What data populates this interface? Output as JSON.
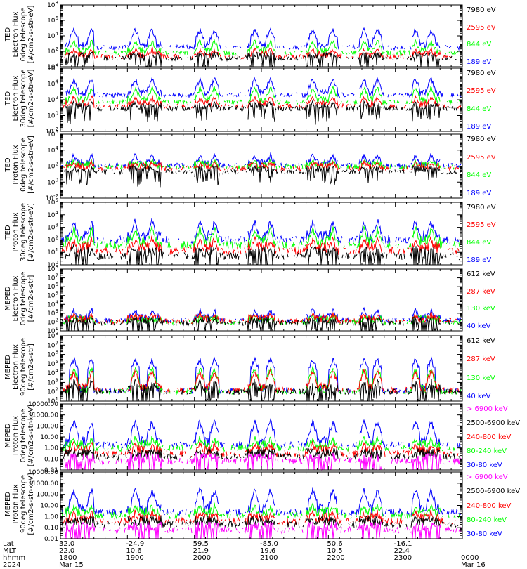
{
  "colors": {
    "blue": "#0000ff",
    "red": "#ff0000",
    "green": "#00ff00",
    "black": "#000000",
    "magenta": "#ff00ff"
  },
  "chart_data": [
    {
      "type": "line",
      "ylabel": [
        "TED",
        "Electron Flux",
        "0deg telescope",
        "[#/cm2-s-str-eV]"
      ],
      "ylim": [
        1.0,
        100000000.0
      ],
      "ticks": [
        "10^0",
        "10^2",
        "10^4",
        "10^6",
        "10^8"
      ],
      "legend": [
        "7980 eV",
        "2595 eV",
        "844 eV",
        "189 eV"
      ],
      "series": [
        {
          "name": "189 eV",
          "color": "blue",
          "level": 2.5,
          "burst": 4.8
        },
        {
          "name": "844 eV",
          "color": "green",
          "level": 1.8,
          "burst": 3.3
        },
        {
          "name": "2595 eV",
          "color": "red",
          "level": 1.3,
          "burst": 2.3
        },
        {
          "name": "7980 eV",
          "color": "black",
          "level": 1.1,
          "burst": 1.7
        }
      ]
    },
    {
      "type": "line",
      "ylabel": [
        "TED",
        "Electron Flux",
        "30deg telescope",
        "[#/cm2-s-str-eV]"
      ],
      "ylim": [
        0.01,
        1000000.0
      ],
      "ticks": [
        "10^-2",
        "10^0",
        "10^2",
        "10^4",
        "10^6"
      ],
      "legend": [
        "7980 eV",
        "2595 eV",
        "844 eV",
        "189 eV"
      ],
      "series": [
        {
          "name": "189 eV",
          "color": "blue",
          "level": 2.6,
          "burst": 4.6
        },
        {
          "name": "844 eV",
          "color": "green",
          "level": 1.7,
          "burst": 3.5
        },
        {
          "name": "2595 eV",
          "color": "red",
          "level": 1.2,
          "burst": 2.4
        },
        {
          "name": "7980 eV",
          "color": "black",
          "level": 0.9,
          "burst": 1.6
        }
      ]
    },
    {
      "type": "line",
      "ylabel": [
        "TED",
        "Proton Flux",
        "0deg telescope",
        "[#/cm2-s-str-eV]"
      ],
      "ylim": [
        0.01,
        1000000.0
      ],
      "ticks": [
        "10^-2",
        "10^0",
        "10^2",
        "10^4",
        "10^6"
      ],
      "legend": [
        "7980 eV",
        "2595 eV",
        "844 eV",
        "189 eV"
      ],
      "series": [
        {
          "name": "189 eV",
          "color": "blue",
          "level": 2.1,
          "burst": 3.4
        },
        {
          "name": "844 eV",
          "color": "green",
          "level": 1.9,
          "burst": 2.7
        },
        {
          "name": "2595 eV",
          "color": "red",
          "level": 1.7,
          "burst": 2.5
        },
        {
          "name": "7980 eV",
          "color": "black",
          "level": 1.3,
          "burst": 1.9
        }
      ]
    },
    {
      "type": "line",
      "ylabel": [
        "TED",
        "Proton Flux",
        "30deg telescope",
        "[#/cm2-s-str-eV]"
      ],
      "ylim": [
        1.0,
        100000.0
      ],
      "ticks": [
        "10^0",
        "10^1",
        "10^2",
        "10^3",
        "10^4",
        "10^5"
      ],
      "legend": [
        "7980 eV",
        "2595 eV",
        "844 eV",
        "189 eV"
      ],
      "series": [
        {
          "name": "189 eV",
          "color": "blue",
          "level": 2.0,
          "burst": 3.5
        },
        {
          "name": "844 eV",
          "color": "green",
          "level": 1.6,
          "burst": 2.9
        },
        {
          "name": "2595 eV",
          "color": "red",
          "level": 1.1,
          "burst": 2.1
        },
        {
          "name": "7980 eV",
          "color": "black",
          "level": 0.7,
          "burst": 1.4
        }
      ]
    },
    {
      "type": "line",
      "ylabel": [
        "MEPED",
        "Electron Flux",
        "0deg telescope",
        "[#/cm2-s-str]"
      ],
      "ylim": [
        10.0,
        100000000.0
      ],
      "ticks": [
        "10^1",
        "10^2",
        "10^3",
        "10^4",
        "10^5",
        "10^6",
        "10^7",
        "10^8"
      ],
      "legend": [
        "612 keV",
        "287 keV",
        "130 keV",
        "40 keV"
      ],
      "series": [
        {
          "name": "40 keV",
          "color": "blue",
          "level": 2.2,
          "burst": 3.4
        },
        {
          "name": "130 keV",
          "color": "green",
          "level": 2.0,
          "burst": 2.6
        },
        {
          "name": "287 keV",
          "color": "red",
          "level": 2.1,
          "burst": 2.9
        },
        {
          "name": "612 keV",
          "color": "black",
          "level": 1.9,
          "burst": 2.3
        }
      ]
    },
    {
      "type": "line",
      "ylabel": [
        "MEPED",
        "Electron Flux",
        "90deg telescope",
        "[#/cm2-s-str]"
      ],
      "ylim": [
        10.0,
        100000000.0
      ],
      "ticks": [
        "10^1",
        "10^2",
        "10^3",
        "10^4",
        "10^5",
        "10^6",
        "10^7",
        "10^8"
      ],
      "legend": [
        "612 keV",
        "287 keV",
        "130 keV",
        "40 keV"
      ],
      "series": [
        {
          "name": "40 keV",
          "color": "blue",
          "level": 2.1,
          "burst": 5.5
        },
        {
          "name": "130 keV",
          "color": "green",
          "level": 2.0,
          "burst": 4.5
        },
        {
          "name": "287 keV",
          "color": "red",
          "level": 2.2,
          "burst": 4.2
        },
        {
          "name": "612 keV",
          "color": "black",
          "level": 2.0,
          "burst": 3.2
        }
      ]
    },
    {
      "type": "line",
      "ylabel": [
        "MEPED",
        "Proton Flux",
        "0deg telescope",
        "[#/cm2-s-str-keV]"
      ],
      "ylim": [
        0.01,
        10000
      ],
      "ticks": [
        "0.01",
        "0.10",
        "1.00",
        "10.00",
        "100.00",
        "1000.00",
        "10000.00"
      ],
      "legend": [
        "> 6900 keV",
        "2500-6900 keV",
        "240-800 keV",
        "80-240 keV",
        "30-80 keV"
      ],
      "series": [
        {
          "name": "30-80 keV",
          "color": "blue",
          "level": 0.3,
          "burst": 2.4
        },
        {
          "name": "80-240 keV",
          "color": "green",
          "level": 0.0,
          "burst": 0.9
        },
        {
          "name": "240-800 keV",
          "color": "red",
          "level": -0.5,
          "burst": 0.4
        },
        {
          "name": "2500-6900 keV",
          "color": "black",
          "level": -0.8,
          "burst": -0.5
        },
        {
          "name": "> 6900 keV",
          "color": "magenta",
          "level": -1.2,
          "burst": -1.1
        }
      ]
    },
    {
      "type": "line",
      "ylabel": [
        "MEPED",
        "Proton Flux",
        "90deg telescope",
        "[#/cm2-s-str-keV]"
      ],
      "ylim": [
        0.01,
        10000
      ],
      "ticks": [
        "0.01",
        "0.10",
        "1.00",
        "10.00",
        "100.00",
        "1000.00",
        "10000.00"
      ],
      "legend": [
        "> 6900 keV",
        "2500-6900 keV",
        "240-800 keV",
        "80-240 keV",
        "30-80 keV"
      ],
      "series": [
        {
          "name": "30-80 keV",
          "color": "blue",
          "level": 0.4,
          "burst": 2.4
        },
        {
          "name": "80-240 keV",
          "color": "green",
          "level": 0.1,
          "burst": 1.0
        },
        {
          "name": "240-800 keV",
          "color": "red",
          "level": -0.4,
          "burst": 0.4
        },
        {
          "name": "2500-6900 keV",
          "color": "black",
          "level": -0.7,
          "burst": -0.5
        },
        {
          "name": "> 6900 keV",
          "color": "magenta",
          "level": -1.2,
          "burst": -1.1
        }
      ]
    }
  ],
  "passes": [
    {
      "start": "1805",
      "end": "1830",
      "bursts": [
        "1812",
        "1828"
      ]
    },
    {
      "start": "1900",
      "end": "1930",
      "bursts": [
        "1907",
        "1922"
      ]
    },
    {
      "start": "2000",
      "end": "2022",
      "bursts": [
        "2005",
        "2018"
      ]
    },
    {
      "start": "2048",
      "end": "2112",
      "bursts": [
        "2054",
        "2108"
      ]
    },
    {
      "start": "2140",
      "end": "2208",
      "bursts": [
        "2146",
        "2204"
      ]
    },
    {
      "start": "2228",
      "end": "2248",
      "bursts": [
        "2232",
        "2244"
      ]
    },
    {
      "start": "2315",
      "end": "2340",
      "bursts": [
        "2318",
        "2332"
      ]
    }
  ],
  "footer": {
    "row_labels": [
      "Lat",
      "MLT",
      "hhmm",
      "2024"
    ],
    "columns": [
      {
        "lat": "32.0",
        "mlt": "22.0",
        "hhmm": "1800",
        "date": "Mar 15"
      },
      {
        "lat": "-24.9",
        "mlt": "10.6",
        "hhmm": "1900",
        "date": ""
      },
      {
        "lat": "59.5",
        "mlt": "21.9",
        "hhmm": "2000",
        "date": ""
      },
      {
        "lat": "-85.0",
        "mlt": "19.6",
        "hhmm": "2100",
        "date": ""
      },
      {
        "lat": "50.6",
        "mlt": "10.5",
        "hhmm": "2200",
        "date": ""
      },
      {
        "lat": "-16.1",
        "mlt": "22.4",
        "hhmm": "2300",
        "date": ""
      },
      {
        "lat": "",
        "mlt": "",
        "hhmm": "0000",
        "date": "Mar 16"
      }
    ]
  }
}
